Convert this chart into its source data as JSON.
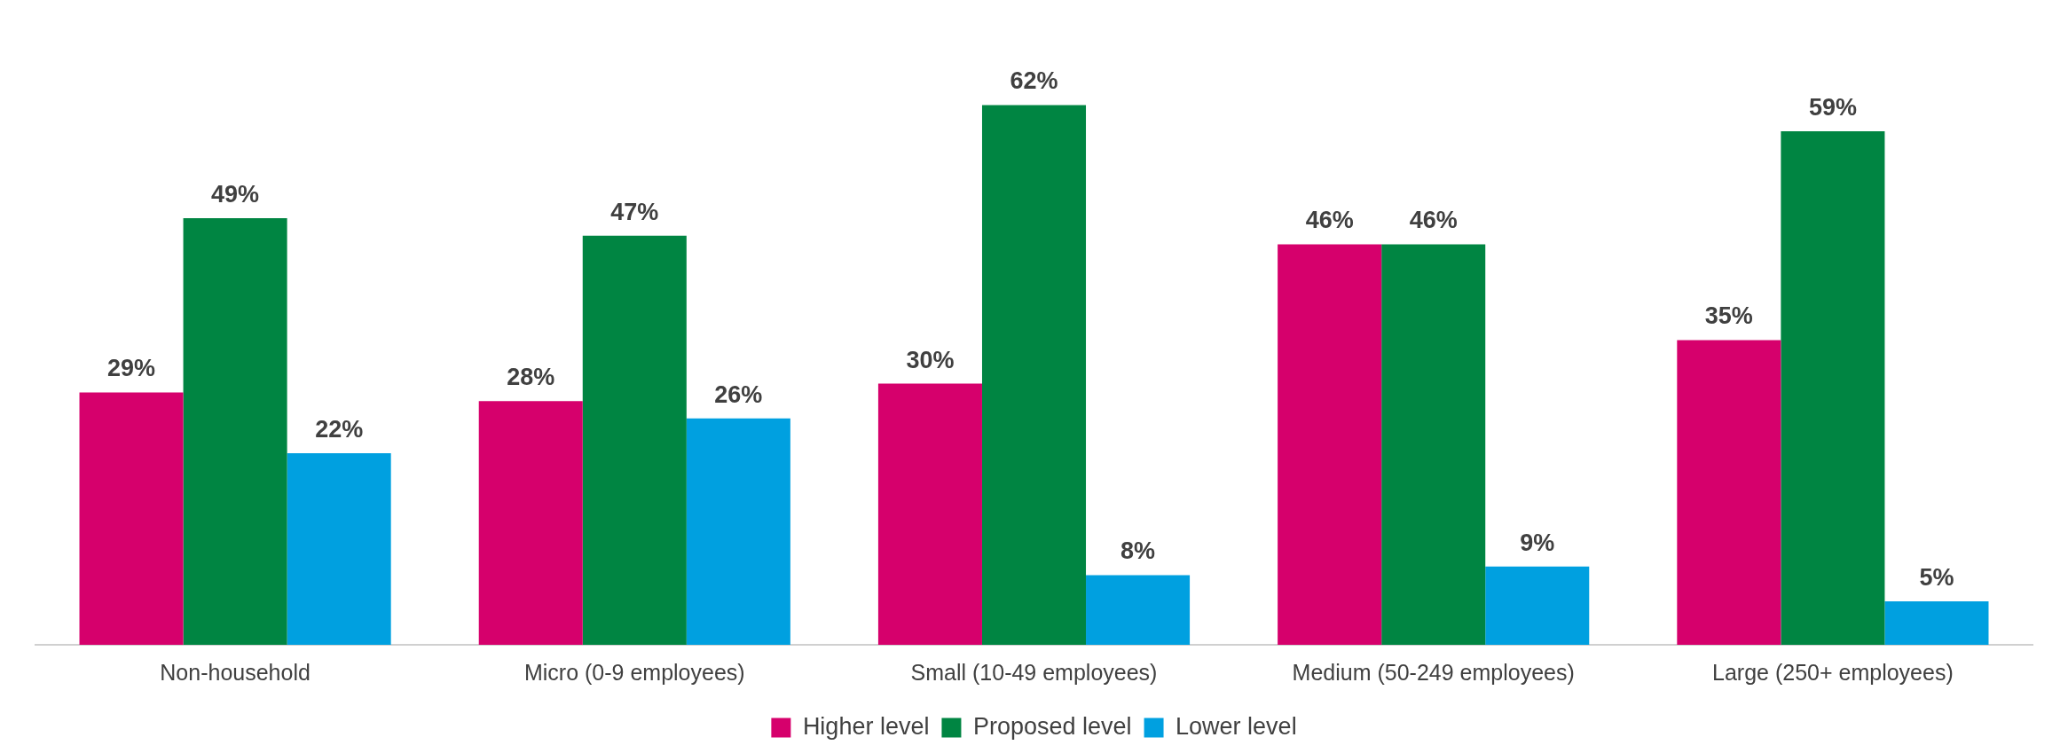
{
  "chart_data": {
    "type": "bar",
    "categories": [
      "Non-household",
      "Micro (0-9 employees)",
      "Small (10-49 employees)",
      "Medium (50-249 employees)",
      "Large (250+ employees)"
    ],
    "series": [
      {
        "name": "Higher level",
        "color": "#d6006c",
        "values": [
          29,
          28,
          30,
          46,
          35
        ],
        "value_labels": [
          "29%",
          "28%",
          "30%",
          "46%",
          "35%"
        ]
      },
      {
        "name": "Proposed level",
        "color": "#008542",
        "values": [
          49,
          47,
          62,
          46,
          59
        ],
        "value_labels": [
          "49%",
          "47%",
          "62%",
          "46%",
          "59%"
        ]
      },
      {
        "name": "Lower level",
        "color": "#00a0e0",
        "values": [
          22,
          26,
          8,
          9,
          5
        ],
        "value_labels": [
          "22%",
          "26%",
          "8%",
          "9%",
          "5%"
        ]
      }
    ],
    "legend": "bottom",
    "grid": false
  }
}
